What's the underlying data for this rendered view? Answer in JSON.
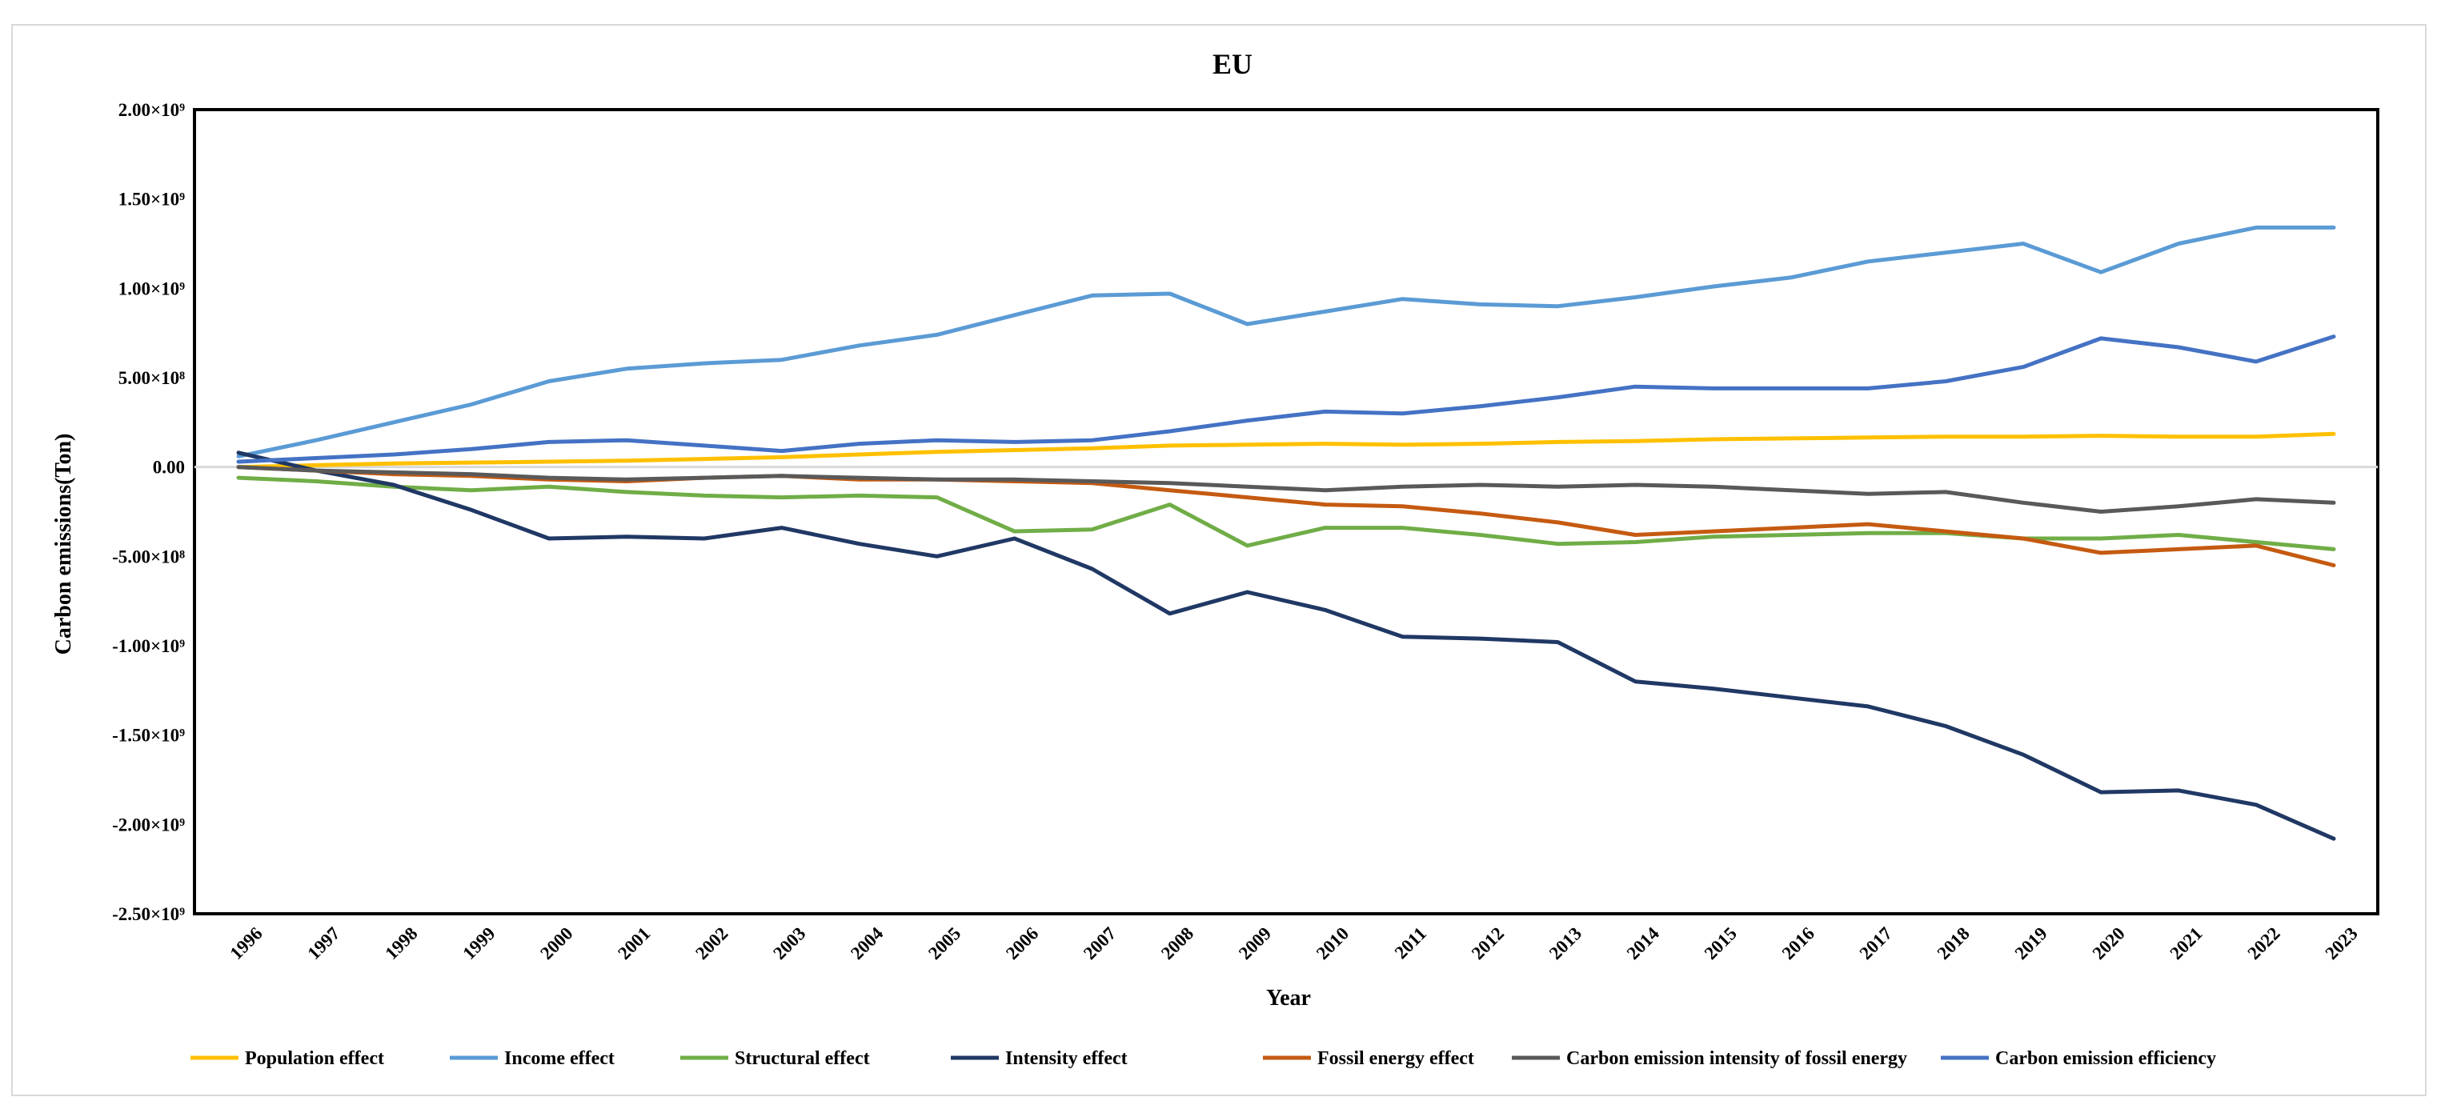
{
  "chart_data": {
    "type": "line",
    "title": "EU",
    "xlabel": "Year",
    "ylabel": "Carbon emissions(Ton)",
    "ylim": [
      -2500000000,
      2000000000
    ],
    "y_ticks": [
      2000000000,
      1500000000,
      1000000000,
      500000000,
      0,
      -500000000,
      -1000000000,
      -1500000000,
      -2000000000,
      -2500000000
    ],
    "y_tick_labels": [
      "2.00×10⁹",
      "1.50×10⁹",
      "1.00×10⁹",
      "5.00×10⁸",
      "0.00",
      "-5.00×10⁸",
      "-1.00×10⁹",
      "-1.50×10⁹",
      "-2.00×10⁹",
      "-2.50×10⁹"
    ],
    "categories": [
      "1996",
      "1997",
      "1998",
      "1999",
      "2000",
      "2001",
      "2002",
      "2003",
      "2004",
      "2005",
      "2006",
      "2007",
      "2008",
      "2009",
      "2010",
      "2011",
      "2012",
      "2013",
      "2014",
      "2015",
      "2016",
      "2017",
      "2018",
      "2019",
      "2020",
      "2021",
      "2022",
      "2023"
    ],
    "grid": false,
    "legend_position": "bottom",
    "series": [
      {
        "name": "Population effect",
        "color": "#ffc000",
        "values": [
          0,
          10000000,
          20000000,
          25000000,
          30000000,
          35000000,
          45000000,
          55000000,
          70000000,
          85000000,
          95000000,
          105000000,
          120000000,
          125000000,
          130000000,
          125000000,
          130000000,
          140000000,
          145000000,
          155000000,
          160000000,
          165000000,
          170000000,
          170000000,
          175000000,
          170000000,
          170000000,
          185000000
        ]
      },
      {
        "name": "Income effect",
        "color": "#5b9bd5",
        "values": [
          60000000,
          150000000,
          250000000,
          350000000,
          480000000,
          550000000,
          580000000,
          600000000,
          680000000,
          740000000,
          850000000,
          960000000,
          970000000,
          800000000,
          870000000,
          940000000,
          910000000,
          900000000,
          950000000,
          1010000000,
          1060000000,
          1150000000,
          1200000000,
          1250000000,
          1090000000,
          1250000000,
          1340000000,
          1340000000
        ]
      },
      {
        "name": "Structural effect",
        "color": "#70ad47",
        "values": [
          -60000000,
          -80000000,
          -110000000,
          -130000000,
          -110000000,
          -140000000,
          -160000000,
          -170000000,
          -160000000,
          -170000000,
          -360000000,
          -350000000,
          -210000000,
          -440000000,
          -340000000,
          -340000000,
          -380000000,
          -430000000,
          -420000000,
          -390000000,
          -380000000,
          -370000000,
          -370000000,
          -400000000,
          -400000000,
          -380000000,
          -420000000,
          -460000000
        ]
      },
      {
        "name": "Intensity effect",
        "color": "#203864",
        "values": [
          80000000,
          -20000000,
          -100000000,
          -240000000,
          -400000000,
          -390000000,
          -400000000,
          -340000000,
          -430000000,
          -500000000,
          -400000000,
          -570000000,
          -820000000,
          -700000000,
          -800000000,
          -950000000,
          -960000000,
          -980000000,
          -1200000000,
          -1240000000,
          -1290000000,
          -1340000000,
          -1450000000,
          -1610000000,
          -1820000000,
          -1810000000,
          -1890000000,
          -2080000000
        ]
      },
      {
        "name": "Fossil energy effect",
        "color": "#c55a11",
        "values": [
          0,
          -20000000,
          -40000000,
          -50000000,
          -70000000,
          -80000000,
          -60000000,
          -50000000,
          -70000000,
          -70000000,
          -80000000,
          -90000000,
          -130000000,
          -170000000,
          -210000000,
          -220000000,
          -260000000,
          -310000000,
          -380000000,
          -360000000,
          -340000000,
          -320000000,
          -360000000,
          -400000000,
          -480000000,
          -460000000,
          -440000000,
          -550000000
        ]
      },
      {
        "name": "Carbon emission intensity of fossil energy",
        "color": "#595959",
        "values": [
          0,
          -20000000,
          -30000000,
          -40000000,
          -60000000,
          -70000000,
          -60000000,
          -50000000,
          -60000000,
          -70000000,
          -70000000,
          -80000000,
          -90000000,
          -110000000,
          -130000000,
          -110000000,
          -100000000,
          -110000000,
          -100000000,
          -110000000,
          -130000000,
          -150000000,
          -140000000,
          -200000000,
          -250000000,
          -220000000,
          -180000000,
          -200000000
        ]
      },
      {
        "name": "Carbon emission efficiency",
        "color": "#4472c4",
        "values": [
          30000000,
          50000000,
          70000000,
          100000000,
          140000000,
          150000000,
          120000000,
          90000000,
          130000000,
          150000000,
          140000000,
          150000000,
          200000000,
          260000000,
          310000000,
          300000000,
          340000000,
          390000000,
          450000000,
          440000000,
          440000000,
          440000000,
          480000000,
          560000000,
          720000000,
          670000000,
          590000000,
          730000000
        ]
      }
    ]
  }
}
